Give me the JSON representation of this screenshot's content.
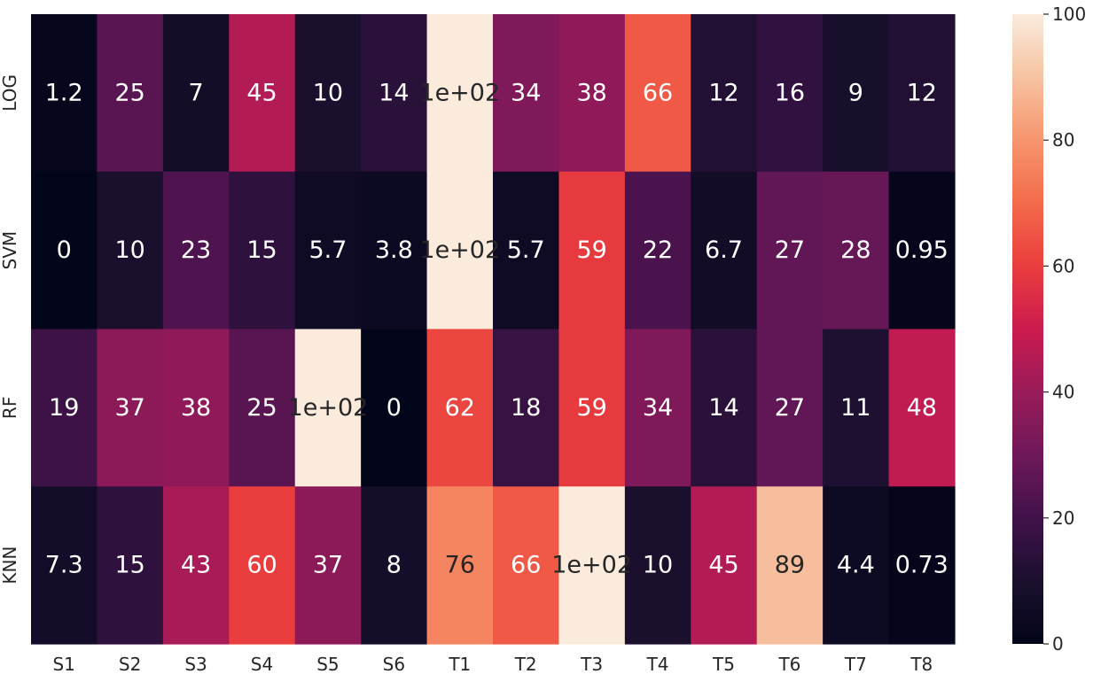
{
  "chart_data": {
    "type": "heatmap",
    "title": "",
    "xlabel": "",
    "ylabel": "",
    "x_categories": [
      "S1",
      "S2",
      "S3",
      "S4",
      "S5",
      "S6",
      "T1",
      "T2",
      "T3",
      "T4",
      "T5",
      "T6",
      "T7",
      "T8"
    ],
    "y_categories": [
      "LOG",
      "SVM",
      "RF",
      "KNN"
    ],
    "values": [
      [
        1.2,
        25,
        7,
        45,
        10,
        14,
        100,
        34,
        38,
        66,
        12,
        16,
        9,
        12
      ],
      [
        0,
        10,
        23,
        15,
        5.7,
        3.8,
        100,
        5.7,
        59,
        22,
        6.7,
        27,
        28,
        0.95
      ],
      [
        19,
        37,
        38,
        25,
        100,
        0,
        62,
        18,
        59,
        34,
        14,
        27,
        11,
        48
      ],
      [
        7.3,
        15,
        43,
        60,
        37,
        8,
        76,
        66,
        100,
        10,
        45,
        89,
        4.4,
        0.73
      ]
    ],
    "cell_labels": [
      [
        "1.2",
        "25",
        "7",
        "45",
        "10",
        "14",
        "1e+02",
        "34",
        "38",
        "66",
        "12",
        "16",
        "9",
        "12"
      ],
      [
        "0",
        "10",
        "23",
        "15",
        "5.7",
        "3.8",
        "1e+02",
        "5.7",
        "59",
        "22",
        "6.7",
        "27",
        "28",
        "0.95"
      ],
      [
        "19",
        "37",
        "38",
        "25",
        "1e+02",
        "0",
        "62",
        "18",
        "59",
        "34",
        "14",
        "27",
        "11",
        "48"
      ],
      [
        "7.3",
        "15",
        "43",
        "60",
        "37",
        "8",
        "76",
        "66",
        "1e+02",
        "10",
        "45",
        "89",
        "4.4",
        "0.73"
      ]
    ],
    "colorbar": {
      "min": 0,
      "max": 100,
      "ticks": [
        0,
        20,
        40,
        60,
        80,
        100
      ],
      "tick_labels": [
        "0",
        "20",
        "40",
        "60",
        "80",
        "100"
      ]
    },
    "colormap": "rocket",
    "grid": false,
    "legend": "colorbar-right"
  }
}
